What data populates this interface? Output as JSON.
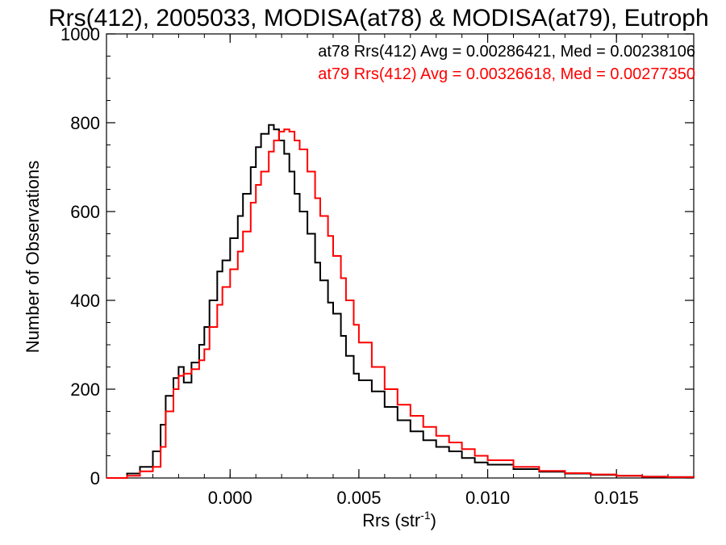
{
  "chart_data": {
    "type": "line",
    "title": "Rrs(412), 2005033, MODISA(at78) & MODISA(at79), Eutroph",
    "xlabel_base": "Rrs (str",
    "xlabel_sup": "-1",
    "xlabel_close": ")",
    "ylabel": "Number of Observations",
    "xlim": [
      -0.0048,
      0.018
    ],
    "ylim": [
      0,
      1000
    ],
    "x_ticks": [
      0.0,
      0.005,
      0.01,
      0.015
    ],
    "x_tick_labels": [
      "0.000",
      "0.005",
      "0.010",
      "0.015"
    ],
    "y_ticks": [
      0,
      200,
      400,
      600,
      800,
      1000
    ],
    "y_tick_labels": [
      "0",
      "200",
      "400",
      "600",
      "800",
      "1000"
    ],
    "grid": false,
    "legend_placement": "top-right",
    "annotations": [
      {
        "text": "at78 Rrs(412) Avg = 0.00286421, Med = 0.00238106",
        "color": "#000000"
      },
      {
        "text": "at79 Rrs(412) Avg = 0.00326618, Med = 0.00277350",
        "color": "#ff0000"
      }
    ],
    "series": [
      {
        "color": "#000000",
        "x": [
          -0.0048,
          -0.004,
          -0.0035,
          -0.003,
          -0.0027,
          -0.0025,
          -0.0022,
          -0.002,
          -0.0018,
          -0.0015,
          -0.0012,
          -0.001,
          -0.0008,
          -0.0005,
          -0.0003,
          0.0,
          0.0003,
          0.0005,
          0.0008,
          0.001,
          0.0012,
          0.0015,
          0.0017,
          0.0019,
          0.0021,
          0.0023,
          0.0025,
          0.0027,
          0.003,
          0.0033,
          0.0035,
          0.0038,
          0.004,
          0.0043,
          0.0045,
          0.0048,
          0.005,
          0.0055,
          0.006,
          0.0065,
          0.007,
          0.0075,
          0.008,
          0.0085,
          0.009,
          0.0095,
          0.01,
          0.011,
          0.012,
          0.013,
          0.014,
          0.015,
          0.016,
          0.017,
          0.018
        ],
        "y": [
          0,
          10,
          25,
          60,
          120,
          185,
          225,
          250,
          215,
          260,
          300,
          340,
          400,
          465,
          490,
          540,
          590,
          640,
          700,
          745,
          775,
          795,
          785,
          760,
          730,
          690,
          640,
          600,
          550,
          485,
          445,
          395,
          370,
          320,
          275,
          235,
          220,
          195,
          160,
          130,
          105,
          85,
          70,
          60,
          45,
          35,
          30,
          20,
          14,
          10,
          7,
          5,
          3,
          2,
          1
        ]
      },
      {
        "color": "#ff0000",
        "x": [
          -0.0048,
          -0.004,
          -0.0035,
          -0.003,
          -0.0027,
          -0.0025,
          -0.0022,
          -0.002,
          -0.0018,
          -0.0015,
          -0.0012,
          -0.001,
          -0.0008,
          -0.0005,
          -0.0003,
          0.0,
          0.0003,
          0.0005,
          0.0008,
          0.001,
          0.0012,
          0.0015,
          0.0017,
          0.0019,
          0.0021,
          0.0023,
          0.0025,
          0.0027,
          0.003,
          0.0033,
          0.0035,
          0.0038,
          0.004,
          0.0043,
          0.0045,
          0.0048,
          0.005,
          0.0055,
          0.006,
          0.0065,
          0.007,
          0.0075,
          0.008,
          0.0085,
          0.009,
          0.0095,
          0.01,
          0.011,
          0.012,
          0.013,
          0.014,
          0.015,
          0.016,
          0.017,
          0.018
        ],
        "y": [
          0,
          5,
          15,
          25,
          70,
          150,
          200,
          230,
          235,
          245,
          265,
          290,
          340,
          390,
          430,
          470,
          510,
          555,
          620,
          660,
          690,
          735,
          760,
          780,
          785,
          780,
          760,
          740,
          690,
          630,
          590,
          545,
          500,
          450,
          400,
          345,
          305,
          250,
          200,
          165,
          140,
          115,
          95,
          80,
          65,
          50,
          40,
          25,
          16,
          11,
          8,
          5,
          3,
          2,
          1
        ]
      }
    ]
  }
}
